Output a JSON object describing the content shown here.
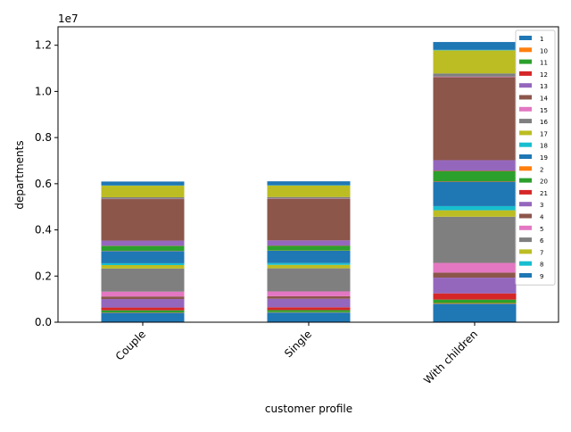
{
  "chart_data": {
    "type": "bar",
    "stacked": true,
    "categories": [
      "Couple",
      "Single",
      "With children"
    ],
    "xlabel": "customer profile",
    "ylabel": "departments",
    "y_offset_label": "1e7",
    "ylim": [
      0,
      12800000
    ],
    "yticks": [
      0,
      2000000,
      4000000,
      6000000,
      8000000,
      10000000,
      12000000
    ],
    "ytick_labels": [
      "0.0",
      "0.2",
      "0.4",
      "0.6",
      "0.8",
      "1.0",
      "1.2"
    ],
    "grid": false,
    "legend_position": "top-right",
    "series": [
      {
        "name": "1",
        "color": "#1f77b4",
        "values": [
          410000,
          420000,
          800000
        ]
      },
      {
        "name": "10",
        "color": "#ff7f0e",
        "values": [
          15000,
          15000,
          30000
        ]
      },
      {
        "name": "11",
        "color": "#2ca02c",
        "values": [
          90000,
          90000,
          150000
        ]
      },
      {
        "name": "12",
        "color": "#d62728",
        "values": [
          120000,
          120000,
          270000
        ]
      },
      {
        "name": "13",
        "color": "#9467bd",
        "values": [
          370000,
          370000,
          680000
        ]
      },
      {
        "name": "14",
        "color": "#8c564b",
        "values": [
          110000,
          110000,
          220000
        ]
      },
      {
        "name": "15",
        "color": "#e377c2",
        "values": [
          210000,
          210000,
          420000
        ]
      },
      {
        "name": "16",
        "color": "#7f7f7f",
        "values": [
          1000000,
          1000000,
          2000000
        ]
      },
      {
        "name": "17",
        "color": "#bcbd22",
        "values": [
          150000,
          150000,
          280000
        ]
      },
      {
        "name": "18",
        "color": "#17becf",
        "values": [
          80000,
          80000,
          180000
        ]
      },
      {
        "name": "19",
        "color": "#1f77b4",
        "values": [
          530000,
          530000,
          1060000
        ]
      },
      {
        "name": "2",
        "color": "#ff7f0e",
        "values": [
          10000,
          10000,
          20000
        ]
      },
      {
        "name": "20",
        "color": "#2ca02c",
        "values": [
          210000,
          210000,
          440000
        ]
      },
      {
        "name": "21",
        "color": "#d62728",
        "values": [
          10000,
          10000,
          20000
        ]
      },
      {
        "name": "3",
        "color": "#9467bd",
        "values": [
          220000,
          220000,
          450000
        ]
      },
      {
        "name": "4",
        "color": "#8c564b",
        "values": [
          1800000,
          1800000,
          3600000
        ]
      },
      {
        "name": "5",
        "color": "#e377c2",
        "values": [
          10000,
          10000,
          20000
        ]
      },
      {
        "name": "6",
        "color": "#7f7f7f",
        "values": [
          70000,
          70000,
          140000
        ]
      },
      {
        "name": "7",
        "color": "#bcbd22",
        "values": [
          500000,
          500000,
          1000000
        ]
      },
      {
        "name": "8",
        "color": "#17becf",
        "values": [
          10000,
          10000,
          20000
        ]
      },
      {
        "name": "9",
        "color": "#1f77b4",
        "values": [
          170000,
          170000,
          340000
        ]
      }
    ]
  }
}
